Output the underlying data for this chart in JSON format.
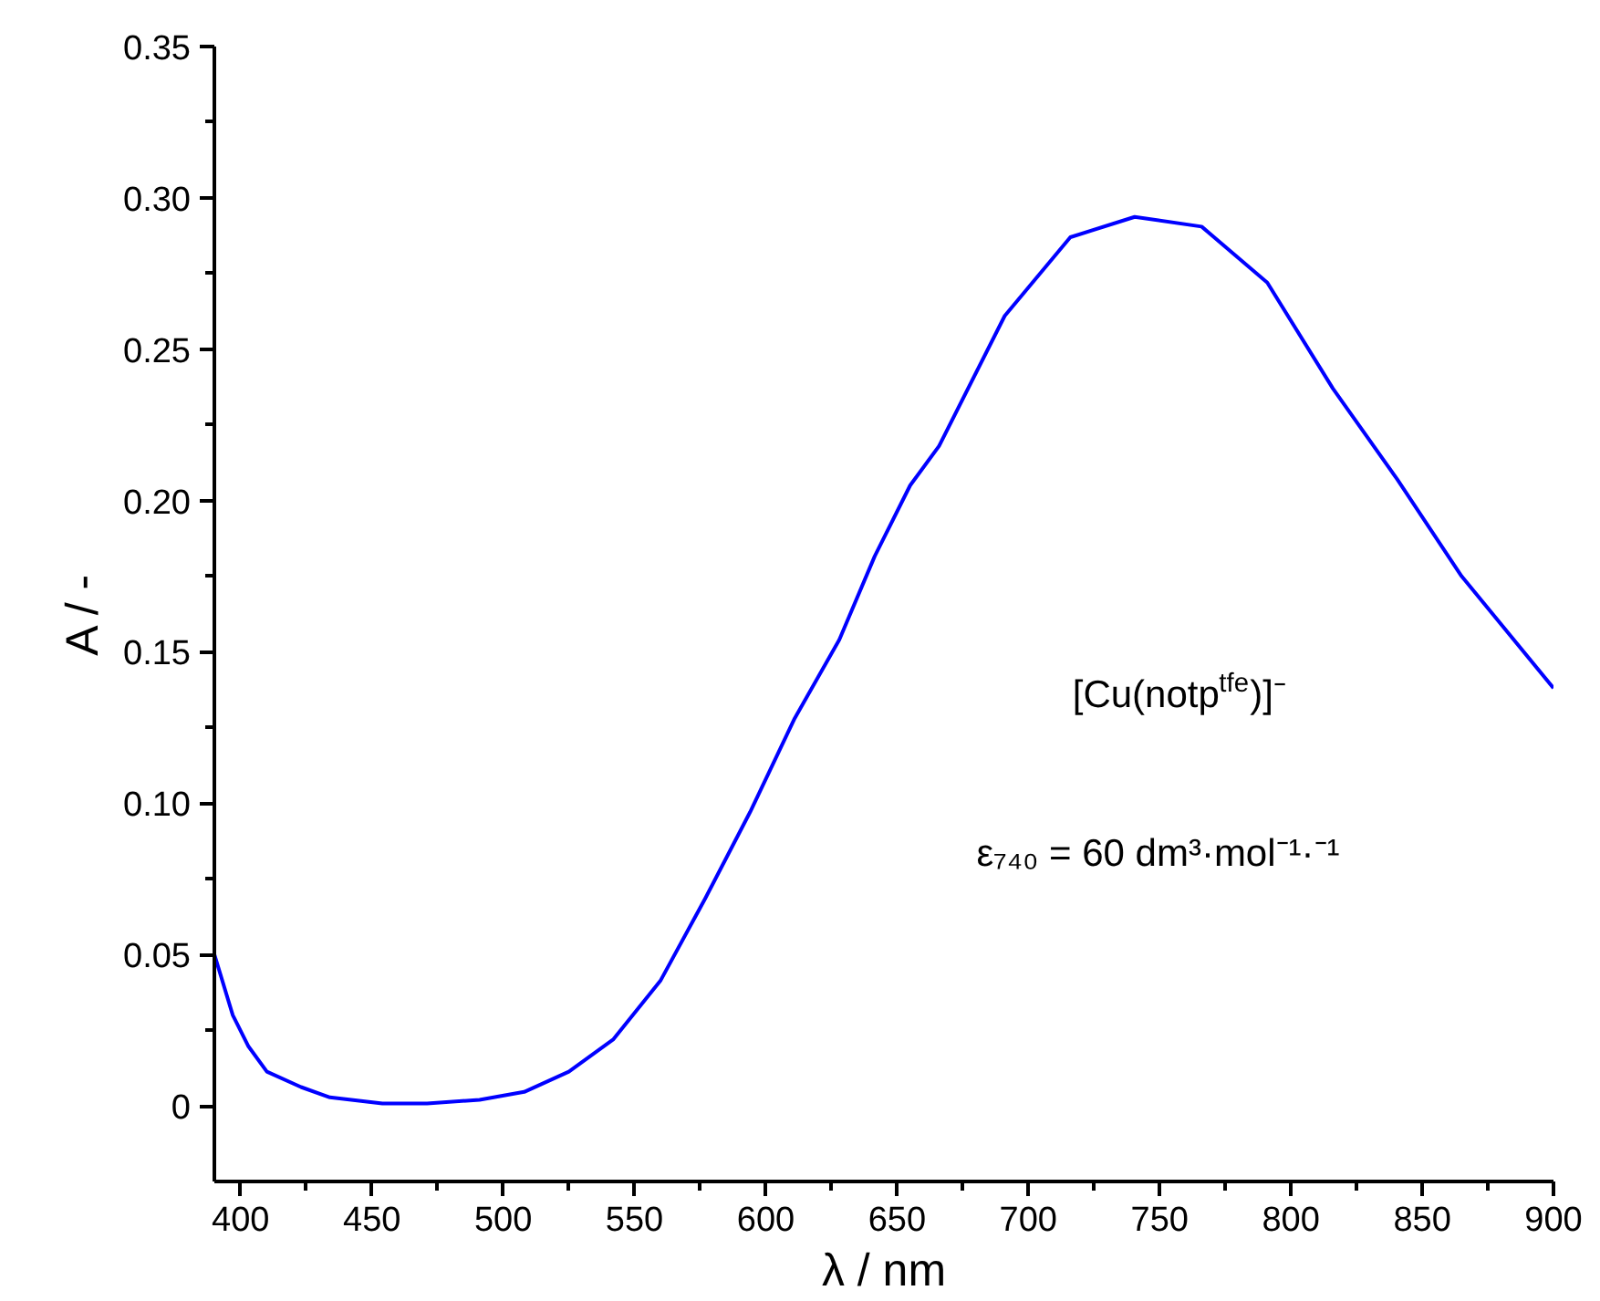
{
  "chart_data": {
    "type": "line",
    "xlabel": "λ / nm",
    "ylabel": "A / -",
    "xlim": [
      390,
      900
    ],
    "ylim": [
      -0.025,
      0.35
    ],
    "xticks": [
      400,
      450,
      500,
      550,
      600,
      650,
      700,
      750,
      800,
      850,
      900
    ],
    "yticks": [
      0,
      0.05,
      {
        "value": 0.1,
        "label": "0.10"
      },
      0.15,
      {
        "value": 0.2,
        "label": "0.20"
      },
      0.25,
      {
        "value": 0.3,
        "label": "0.30"
      },
      0.35
    ],
    "grid": false,
    "marker": "none",
    "line_style": "solid",
    "series": [
      {
        "color": "#0000ff",
        "x": [
          390,
          397,
          403,
          410,
          423,
          434,
          454,
          471,
          491,
          508,
          525,
          542,
          560,
          577,
          594,
          611,
          628,
          641.5,
          655,
          666,
          691,
          716,
          740.5,
          766,
          791,
          816,
          840.5,
          865,
          900
        ],
        "values": [
          0.05,
          0.03,
          0.0196,
          0.0113,
          0.0062,
          0.0028,
          0.0008,
          0.0008,
          0.002,
          0.0046,
          0.0113,
          0.022,
          0.0415,
          0.0686,
          0.097,
          0.128,
          0.154,
          0.1816,
          0.205,
          0.218,
          0.261,
          0.287,
          0.2937,
          0.2905,
          0.272,
          0.237,
          0.207,
          0.175,
          0.138
        ]
      }
    ],
    "annotations": [
      "[Cu(notp$^{tfe}$)]⁻",
      "ε₇₄₀ = 60 dm³·mol⁻¹·⁻¹"
    ]
  }
}
